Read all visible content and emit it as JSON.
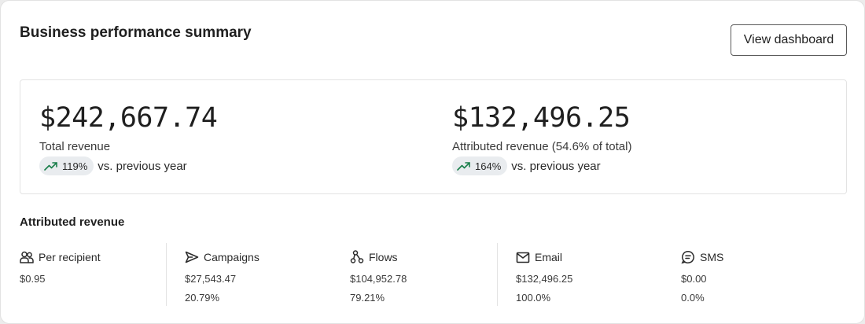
{
  "header": {
    "title": "Business performance summary",
    "view_button": "View dashboard"
  },
  "summary": {
    "total": {
      "value": "$242,667.74",
      "label": "Total revenue",
      "trend": "119%",
      "comparison": "vs. previous year"
    },
    "attributed": {
      "value": "$132,496.25",
      "label": "Attributed revenue (54.6% of total)",
      "trend": "164%",
      "comparison": "vs. previous year"
    }
  },
  "attributed_section": {
    "title": "Attributed revenue",
    "items": [
      {
        "icon": "people-icon",
        "label": "Per recipient",
        "value": "$0.95",
        "percent": ""
      },
      {
        "icon": "send-icon",
        "label": "Campaigns",
        "value": "$27,543.47",
        "percent": "20.79%"
      },
      {
        "icon": "flows-icon",
        "label": "Flows",
        "value": "$104,952.78",
        "percent": "79.21%"
      },
      {
        "icon": "mail-icon",
        "label": "Email",
        "value": "$132,496.25",
        "percent": "100.0%"
      },
      {
        "icon": "chat-icon",
        "label": "SMS",
        "value": "$0.00",
        "percent": "0.0%"
      }
    ]
  },
  "colors": {
    "trend_up": "#1a7f4b",
    "pill_bg": "#e9ecef"
  }
}
